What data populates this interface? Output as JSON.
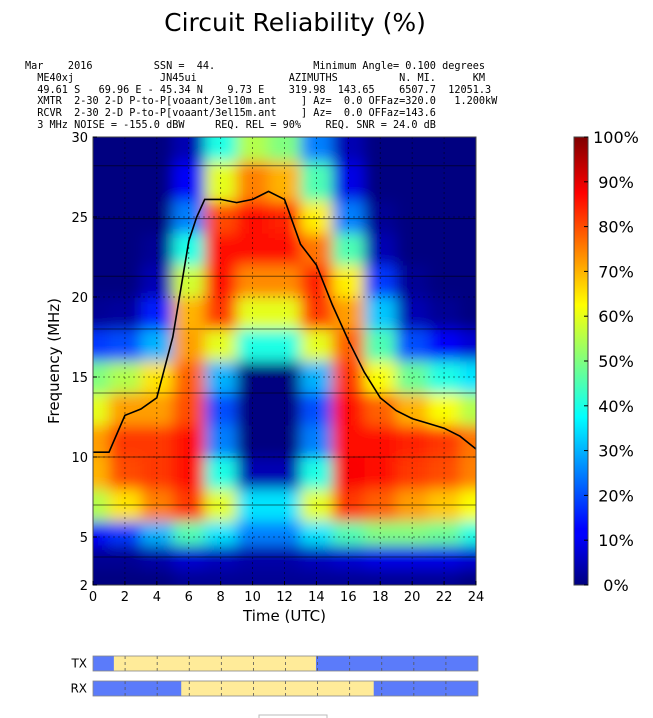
{
  "title": "Circuit Reliability (%)",
  "header_lines": [
    "Mar    2016          SSN =  44.                Minimum Angle= 0.100 degrees",
    "  ME40xj              JN45ui               AZIMUTHS          N. MI.      KM",
    "  49.61 S   69.96 E - 45.34 N    9.73 E    319.98  143.65    6507.7  12051.3",
    "  XMTR  2-30 2-D P-to-P[voaant/3el10m.ant    ] Az=  0.0 OFFaz=320.0   1.200kW",
    "  RCVR  2-30 2-D P-to-P[voaant/3el15m.ant    ] Az=  0.0 OFFaz=143.6",
    "  3 MHz NOISE = -155.0 dBW     REQ. REL = 90%    REQ. SNR = 24.0 dB"
  ],
  "chart_data": {
    "type": "heatmap",
    "title": "Circuit Reliability (%)",
    "xlabel": "Time (UTC)",
    "ylabel": "Frequency (MHz)",
    "xlim": [
      0,
      24
    ],
    "ylim": [
      2,
      30
    ],
    "x_ticks": [
      0,
      2,
      4,
      6,
      8,
      10,
      12,
      14,
      16,
      18,
      20,
      22,
      24
    ],
    "y_ticks": [
      2,
      5,
      10,
      15,
      20,
      25,
      30
    ],
    "x_tick_labels": [
      "0",
      "2",
      "4",
      "6",
      "8",
      "10",
      "12",
      "14",
      "16",
      "18",
      "20",
      "22",
      "24"
    ],
    "y_tick_labels": [
      "2",
      "5",
      "10",
      "15",
      "20",
      "25",
      "30"
    ],
    "colormap": "jet",
    "colorbar": {
      "range": [
        0,
        100
      ],
      "tick_labels": [
        "0%",
        "10%",
        "20%",
        "30%",
        "40%",
        "50%",
        "60%",
        "70%",
        "80%",
        "90%",
        "100%"
      ]
    },
    "grid": "dotted",
    "reliability_percent": {
      "hours": [
        0,
        2,
        4,
        6,
        8,
        10,
        12,
        14,
        16,
        18,
        20,
        22,
        24
      ],
      "frequencies_mhz": [
        2,
        4,
        5,
        7,
        9,
        11,
        13,
        15,
        17,
        19,
        21,
        23,
        25,
        27,
        30
      ],
      "values": [
        [
          0,
          0,
          0,
          2,
          2,
          2,
          2,
          2,
          2,
          2,
          2,
          2,
          0
        ],
        [
          2,
          2,
          4,
          8,
          6,
          4,
          4,
          6,
          8,
          10,
          10,
          10,
          8
        ],
        [
          12,
          18,
          30,
          45,
          35,
          25,
          25,
          35,
          45,
          50,
          50,
          48,
          40
        ],
        [
          55,
          65,
          75,
          82,
          60,
          35,
          35,
          60,
          82,
          78,
          72,
          68,
          62
        ],
        [
          70,
          80,
          82,
          86,
          40,
          5,
          5,
          40,
          88,
          86,
          82,
          80,
          75
        ],
        [
          72,
          82,
          82,
          86,
          25,
          0,
          0,
          25,
          86,
          86,
          84,
          82,
          76
        ],
        [
          60,
          72,
          72,
          80,
          20,
          0,
          0,
          20,
          86,
          78,
          70,
          62,
          55
        ],
        [
          50,
          55,
          65,
          78,
          30,
          0,
          0,
          30,
          82,
          62,
          48,
          40,
          35
        ],
        [
          18,
          20,
          30,
          72,
          60,
          40,
          40,
          60,
          78,
          45,
          20,
          12,
          8
        ],
        [
          2,
          3,
          15,
          70,
          82,
          60,
          60,
          82,
          72,
          32,
          5,
          2,
          0
        ],
        [
          0,
          0,
          5,
          58,
          86,
          74,
          74,
          84,
          64,
          18,
          2,
          0,
          0
        ],
        [
          0,
          0,
          2,
          40,
          86,
          86,
          86,
          76,
          45,
          5,
          0,
          0,
          0
        ],
        [
          0,
          0,
          0,
          25,
          80,
          86,
          84,
          64,
          25,
          2,
          0,
          0,
          0
        ],
        [
          0,
          0,
          0,
          12,
          60,
          75,
          70,
          45,
          10,
          0,
          0,
          0,
          0
        ],
        [
          0,
          0,
          0,
          5,
          40,
          55,
          50,
          25,
          5,
          0,
          0,
          0,
          0
        ]
      ]
    },
    "series": [
      {
        "type": "line",
        "x": [
          0,
          1,
          2,
          3,
          4,
          5,
          5.5,
          6,
          6.5,
          7,
          8,
          9,
          10,
          11,
          12,
          13,
          14,
          15,
          16,
          17,
          18,
          19,
          20,
          21,
          22,
          23,
          24
        ],
        "y": [
          10.3,
          10.3,
          12.6,
          13.0,
          13.7,
          17.5,
          20.5,
          23.5,
          25.0,
          26.1,
          26.1,
          25.9,
          26.1,
          26.6,
          26.1,
          23.3,
          22.0,
          19.5,
          17.3,
          15.3,
          13.7,
          12.9,
          12.4,
          12.1,
          11.8,
          11.3,
          10.5
        ]
      }
    ]
  },
  "txrx": {
    "labels": [
      "TX",
      "RX"
    ],
    "hours": 24,
    "bars": [
      {
        "label": "TX",
        "open": [
          [
            1.3,
            13.9
          ]
        ]
      },
      {
        "label": "RX",
        "open": [
          [
            5.5,
            17.5
          ]
        ]
      }
    ],
    "color_open": "#ffeb99",
    "color_closed": "#5b7bfa"
  }
}
